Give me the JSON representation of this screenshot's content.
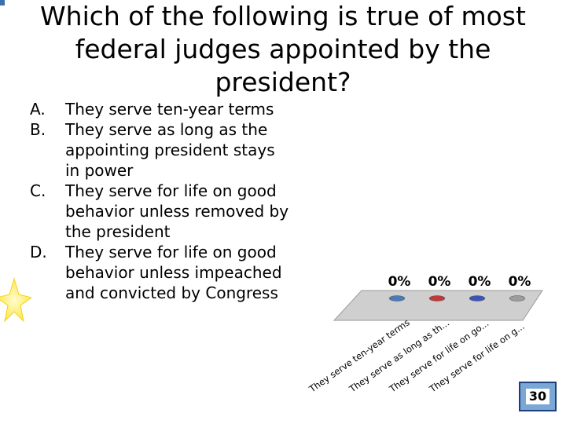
{
  "question": "Which of the following is true of most federal judges appointed by the president?",
  "options": [
    {
      "letter": "A.",
      "text": "They serve ten-year terms"
    },
    {
      "letter": "B.",
      "text": "They serve as long as the appointing president stays in power"
    },
    {
      "letter": "C.",
      "text": "They serve for life on good behavior unless removed by the president"
    },
    {
      "letter": "D.",
      "text": "They serve for life on good behavior unless impeached and convicted by Congress"
    }
  ],
  "chart_data": {
    "type": "bar",
    "categories": [
      "They serve ten-year terms",
      "They serve as long as th...",
      "They serve for life on go...",
      "They serve for life on g..."
    ],
    "values": [
      0,
      0,
      0,
      0
    ],
    "value_labels": [
      "0%",
      "0%",
      "0%",
      "0%"
    ],
    "ylim": [
      0,
      100
    ],
    "colors": [
      "#4a7ab8",
      "#c0393b",
      "#3f55b5",
      "#9c9c9c"
    ],
    "grid": false
  },
  "counter": "30",
  "colors": {
    "floor": "#cfcfcf",
    "counter_bg": "#7aa7d6",
    "star": "#ffe94d"
  }
}
